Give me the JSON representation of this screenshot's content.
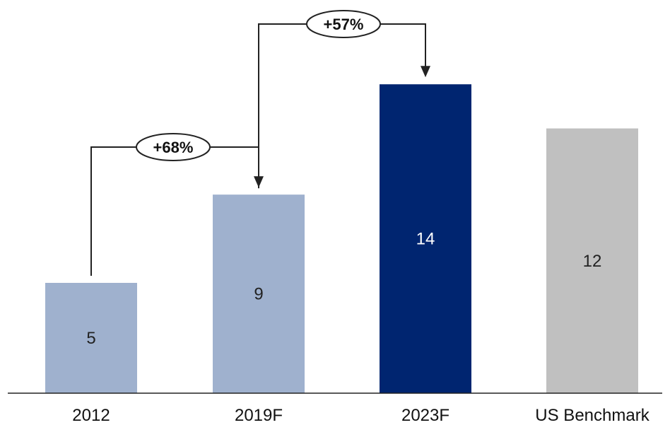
{
  "chart_data": {
    "type": "bar",
    "categories": [
      "2012",
      "2019F",
      "2023F",
      "US Benchmark"
    ],
    "values": [
      5,
      9,
      14,
      12
    ],
    "data_labels": [
      "5",
      "9",
      "14",
      "12"
    ],
    "ylim": [
      0,
      15.4
    ],
    "grid": false,
    "legend": "none",
    "colors": [
      "#9fb1ce",
      "#9fb1ce",
      "#002570",
      "#c0c0c0"
    ],
    "label_colors": [
      "#222222",
      "#222222",
      "#ffffff",
      "#222222"
    ],
    "annotations": [
      {
        "label": "+68%",
        "from": "2012",
        "to": "2019F"
      },
      {
        "label": "+57%",
        "from": "2019F",
        "to": "2023F"
      }
    ]
  }
}
